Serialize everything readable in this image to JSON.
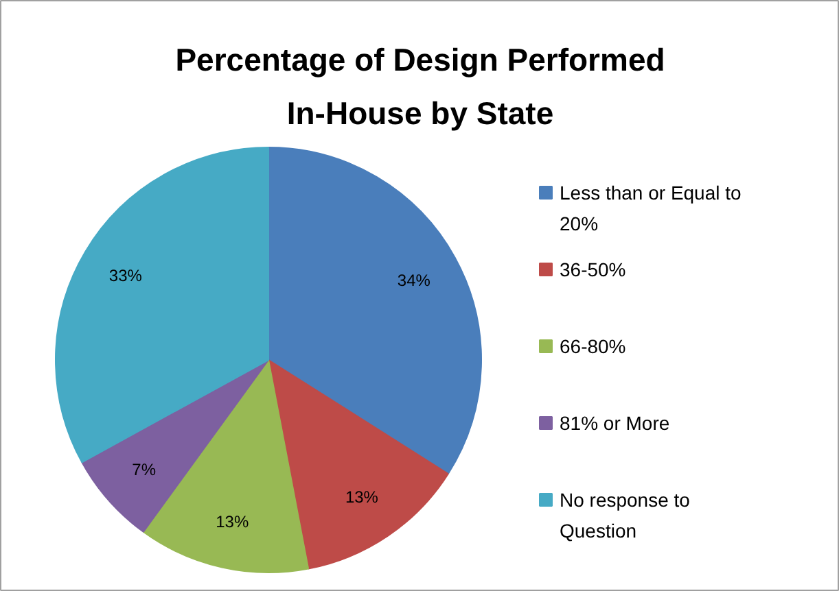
{
  "chart_data": {
    "type": "pie",
    "title": "Percentage of Design Performed In-House by State",
    "categories": [
      "Less than or Equal to 20%",
      "36-50%",
      "66-80%",
      "81% or More",
      "No response to Question"
    ],
    "values": [
      34,
      13,
      13,
      7,
      33
    ],
    "colors": [
      "#4a7ebb",
      "#be4b48",
      "#98b954",
      "#7d60a0",
      "#46aac5"
    ],
    "value_labels": [
      "34%",
      "13%",
      "13%",
      "7%",
      "33%"
    ],
    "legend": "right"
  }
}
